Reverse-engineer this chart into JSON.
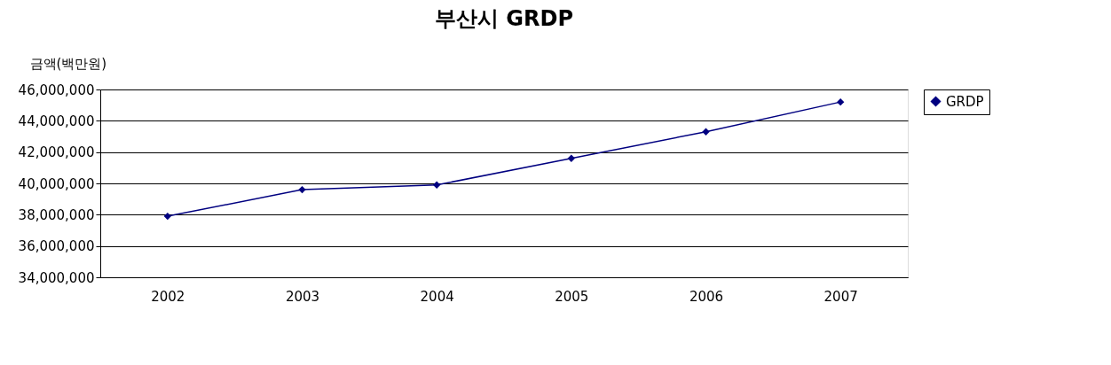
{
  "chart_data": {
    "type": "line",
    "title": "부산시 GRDP",
    "ylabel": "금액(백만원)",
    "categories": [
      "2002",
      "2003",
      "2004",
      "2005",
      "2006",
      "2007"
    ],
    "series": [
      {
        "name": "GRDP",
        "color": "#000080",
        "values": [
          37900000,
          39600000,
          39900000,
          41600000,
          43300000,
          45200000
        ]
      }
    ],
    "ylim": [
      34000000,
      46000000
    ],
    "yticks": [
      {
        "value": 34000000,
        "label": "34,000,000"
      },
      {
        "value": 36000000,
        "label": "36,000,000"
      },
      {
        "value": 38000000,
        "label": "38,000,000"
      },
      {
        "value": 40000000,
        "label": "40,000,000"
      },
      {
        "value": 42000000,
        "label": "42,000,000"
      },
      {
        "value": 44000000,
        "label": "44,000,000"
      },
      {
        "value": 46000000,
        "label": "46,000,000"
      }
    ],
    "grid": "y",
    "legend": "right",
    "marker": "diamond",
    "line_style": "solid"
  }
}
